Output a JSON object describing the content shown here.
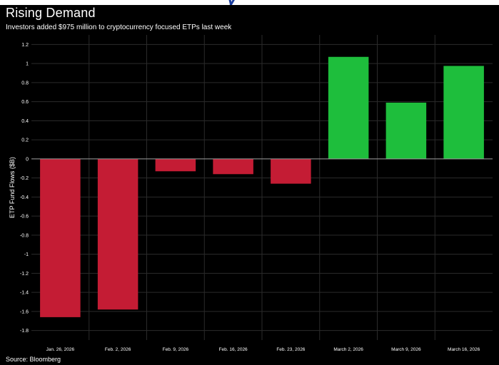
{
  "header": {
    "banner_text": "y",
    "title": "Rising Demand",
    "subtitle": "Investors added $975 million to cryptocurrency focused ETPs last week"
  },
  "footer": {
    "source": "Source: Bloomberg"
  },
  "chart_data": {
    "type": "bar",
    "title": "Rising Demand",
    "subtitle": "Investors added $975 million to cryptocurrency focused ETPs last week",
    "xlabel": "",
    "ylabel": "ETP Fund Flows ($B)",
    "categories": [
      "Jan. 26, 2026",
      "Feb. 2, 2026",
      "Feb. 9, 2026",
      "Feb. 16, 2026",
      "Feb. 23, 2026",
      "March 2, 2026",
      "March 9, 2026",
      "March 16, 2026"
    ],
    "values": [
      -1.66,
      -1.58,
      -0.13,
      -0.16,
      -0.26,
      1.07,
      0.59,
      0.975
    ],
    "ylim": [
      -1.9,
      1.3
    ],
    "yticks": [
      1.2,
      1,
      0.8,
      0.6,
      0.4,
      0.2,
      0,
      -0.2,
      -0.4,
      -0.6,
      -0.8,
      -1,
      -1.2,
      -1.4,
      -1.6,
      -1.8
    ],
    "ytick_labels": [
      "1.2",
      "1",
      "0.8",
      "0.6",
      "0.4",
      "0.2",
      "0",
      "-0.2",
      "-0.4",
      "-0.6",
      "-0.8",
      "-1",
      "-1.2",
      "-1.4",
      "-1.6",
      "-1.8"
    ],
    "grid": true,
    "legend": "none",
    "colors": {
      "positive": "#1ebe3c",
      "negative": "#c41c34",
      "background": "#000000",
      "grid": "#2b2b2b",
      "axis_text": "#ffffff"
    }
  }
}
